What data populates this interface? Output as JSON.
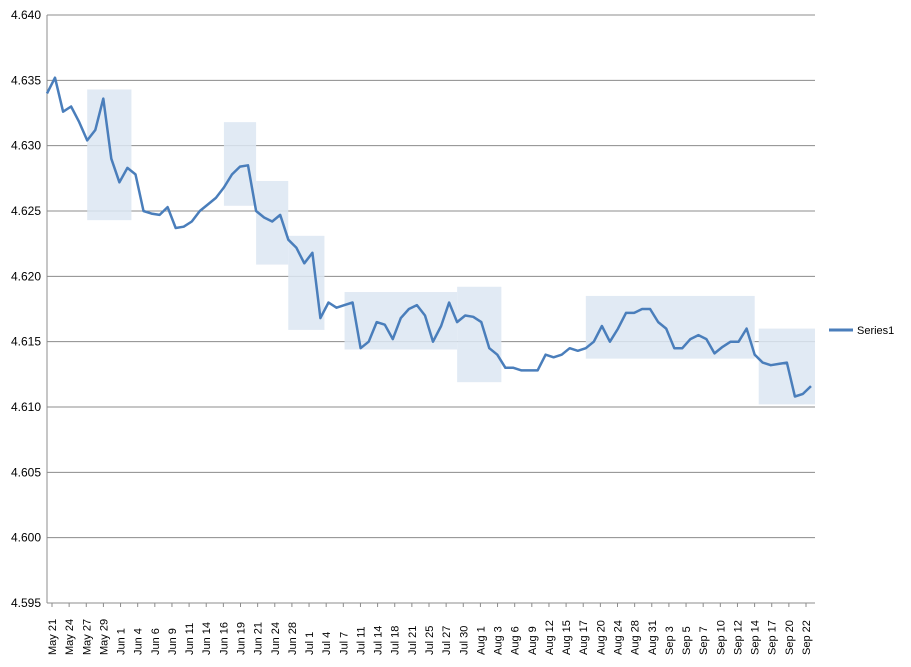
{
  "chart_data": {
    "type": "line",
    "title": "",
    "xlabel": "",
    "ylabel": "",
    "ylim": [
      4.595,
      4.64
    ],
    "y_ticks": [
      "4.595",
      "4.600",
      "4.605",
      "4.610",
      "4.615",
      "4.620",
      "4.625",
      "4.630",
      "4.635",
      "4.640"
    ],
    "x_tick_labels": [
      "May 21",
      "May 24",
      "May 27",
      "May 29",
      "Jun 1",
      "Jun 4",
      "Jun 6",
      "Jun 9",
      "Jun 11",
      "Jun 14",
      "Jun 16",
      "Jun 19",
      "Jun 21",
      "Jun 24",
      "Jun 28",
      "Jul 1",
      "Jul 4",
      "Jul 7",
      "Jul 11",
      "Jul 14",
      "Jul 18",
      "Jul 21",
      "Jul 25",
      "Jul 27",
      "Jul 30",
      "Aug 1",
      "Aug 3",
      "Aug 6",
      "Aug 9",
      "Aug 12",
      "Aug 15",
      "Aug 17",
      "Aug 20",
      "Aug 24",
      "Aug 28",
      "Aug 31",
      "Sep 3",
      "Sep 5",
      "Sep 7",
      "Sep 10",
      "Sep 12",
      "Sep 14",
      "Sep 17",
      "Sep 20",
      "Sep 22"
    ],
    "grid": "horizontal",
    "legend": "right",
    "series": [
      {
        "name": "Series1",
        "color": "#4a7ebb",
        "points": [
          [
            0.0,
            4.634
          ],
          [
            1.0,
            4.6352
          ],
          [
            2.0,
            4.6326
          ],
          [
            3.0,
            4.633
          ],
          [
            4.0,
            4.6318
          ],
          [
            5.0,
            4.6304
          ],
          [
            6.0,
            4.6312
          ],
          [
            7.0,
            4.6336
          ],
          [
            8.0,
            4.629
          ],
          [
            9.0,
            4.6272
          ],
          [
            10.0,
            4.6283
          ],
          [
            11.0,
            4.6278
          ],
          [
            12.0,
            4.625
          ],
          [
            13.0,
            4.6248
          ],
          [
            14.0,
            4.6247
          ],
          [
            15.0,
            4.6253
          ],
          [
            16.0,
            4.6237
          ],
          [
            17.0,
            4.6238
          ],
          [
            18.0,
            4.6242
          ],
          [
            19.0,
            4.625
          ],
          [
            20.0,
            4.6255
          ],
          [
            21.0,
            4.626
          ],
          [
            22.0,
            4.6268
          ],
          [
            23.0,
            4.6278
          ],
          [
            24.0,
            4.6284
          ],
          [
            25.0,
            4.6285
          ],
          [
            26.0,
            4.625
          ],
          [
            27.0,
            4.6245
          ],
          [
            28.0,
            4.6242
          ],
          [
            29.0,
            4.6247
          ],
          [
            30.0,
            4.6228
          ],
          [
            31.0,
            4.6222
          ],
          [
            32.0,
            4.621
          ],
          [
            33.0,
            4.6218
          ],
          [
            34.0,
            4.6168
          ],
          [
            35.0,
            4.618
          ],
          [
            36.0,
            4.6176
          ],
          [
            37.0,
            4.6178
          ],
          [
            38.0,
            4.618
          ],
          [
            39.0,
            4.6145
          ],
          [
            40.0,
            4.615
          ],
          [
            41.0,
            4.6165
          ],
          [
            42.0,
            4.6163
          ],
          [
            43.0,
            4.6152
          ],
          [
            44.0,
            4.6168
          ],
          [
            45.0,
            4.6175
          ],
          [
            46.0,
            4.6178
          ],
          [
            47.0,
            4.617
          ],
          [
            48.0,
            4.615
          ],
          [
            49.0,
            4.6162
          ],
          [
            50.0,
            4.618
          ],
          [
            51.0,
            4.6165
          ],
          [
            52.0,
            4.617
          ],
          [
            53.0,
            4.6169
          ],
          [
            54.0,
            4.6165
          ],
          [
            55.0,
            4.6145
          ],
          [
            56.0,
            4.614
          ],
          [
            57.0,
            4.613
          ],
          [
            58.0,
            4.613
          ],
          [
            59.0,
            4.6128
          ],
          [
            60.0,
            4.6128
          ],
          [
            61.0,
            4.6128
          ],
          [
            62.0,
            4.614
          ],
          [
            63.0,
            4.6138
          ],
          [
            64.0,
            4.614
          ],
          [
            65.0,
            4.6145
          ],
          [
            66.0,
            4.6143
          ],
          [
            67.0,
            4.6145
          ],
          [
            68.0,
            4.615
          ],
          [
            69.0,
            4.6162
          ],
          [
            70.0,
            4.615
          ],
          [
            71.0,
            4.616
          ],
          [
            72.0,
            4.6172
          ],
          [
            73.0,
            4.6172
          ],
          [
            74.0,
            4.6175
          ],
          [
            75.0,
            4.6175
          ],
          [
            76.0,
            4.6165
          ],
          [
            77.0,
            4.616
          ],
          [
            78.0,
            4.6145
          ],
          [
            79.0,
            4.6145
          ],
          [
            80.0,
            4.6152
          ],
          [
            81.0,
            4.6155
          ],
          [
            82.0,
            4.6152
          ],
          [
            83.0,
            4.6141
          ],
          [
            84.0,
            4.6146
          ],
          [
            85.0,
            4.615
          ],
          [
            86.0,
            4.615
          ],
          [
            87.0,
            4.616
          ],
          [
            88.0,
            4.614
          ],
          [
            89.0,
            4.6134
          ],
          [
            90.0,
            4.6132
          ],
          [
            91.0,
            4.6133
          ],
          [
            92.0,
            4.6134
          ],
          [
            93.0,
            4.6108
          ],
          [
            94.0,
            4.611
          ],
          [
            95.0,
            4.6116
          ]
        ]
      }
    ],
    "highlight_boxes": [
      {
        "x0": 5.0,
        "x1": 10.5,
        "y0": 4.6243,
        "y1": 4.6343
      },
      {
        "x0": 22.0,
        "x1": 26.0,
        "y0": 4.6254,
        "y1": 4.6318
      },
      {
        "x0": 26.0,
        "x1": 30.0,
        "y0": 4.6209,
        "y1": 4.6273
      },
      {
        "x0": 30.0,
        "x1": 34.5,
        "y0": 4.6159,
        "y1": 4.6231
      },
      {
        "x0": 37.0,
        "x1": 51.0,
        "y0": 4.6144,
        "y1": 4.6188
      },
      {
        "x0": 51.0,
        "x1": 56.5,
        "y0": 4.6119,
        "y1": 4.6192
      },
      {
        "x0": 67.0,
        "x1": 88.0,
        "y0": 4.6137,
        "y1": 4.6185
      },
      {
        "x0": 88.5,
        "x1": 95.5,
        "y0": 4.6102,
        "y1": 4.616
      }
    ]
  }
}
